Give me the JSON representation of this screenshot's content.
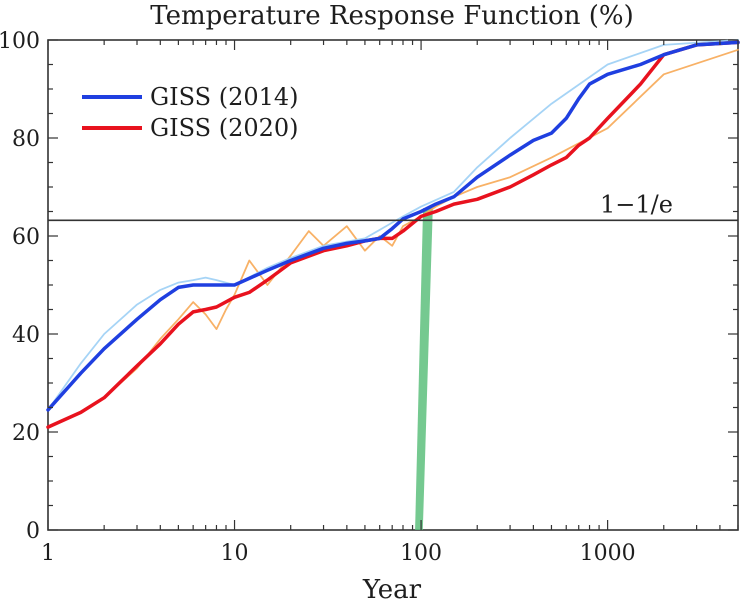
{
  "chart_data": {
    "type": "line",
    "title": "Temperature Response Function (%)",
    "xlabel": "Year",
    "ylabel": "",
    "x_scale": "log",
    "xlim": [
      1,
      5000
    ],
    "ylim": [
      0,
      100
    ],
    "x_ticks": [
      1,
      10,
      100,
      1000
    ],
    "x_tick_labels": [
      "1",
      "10",
      "100",
      "1000"
    ],
    "y_ticks": [
      0,
      20,
      40,
      60,
      80,
      100
    ],
    "y_tick_labels": [
      "0",
      "20",
      "40",
      "60",
      "80",
      "100"
    ],
    "legend_position": "top-left",
    "grid": false,
    "reference_line": {
      "y": 63.2,
      "label": "1−1/e"
    },
    "highlight_band": {
      "x": [
        100,
        110
      ],
      "color": "#5dbf7d"
    },
    "series": [
      {
        "name": "GISS (2014)",
        "color": "#1f3fe0",
        "x": [
          1,
          1.5,
          2,
          3,
          4,
          5,
          6,
          7,
          8,
          10,
          15,
          20,
          30,
          40,
          50,
          60,
          70,
          80,
          100,
          120,
          150,
          200,
          300,
          400,
          500,
          600,
          700,
          800,
          1000,
          1500,
          2000,
          3000,
          5000
        ],
        "y": [
          24.5,
          32,
          37,
          43,
          47,
          49.5,
          50,
          50,
          50,
          50,
          53,
          55,
          57.5,
          58.5,
          59,
          59.5,
          61.5,
          63.5,
          65,
          66.5,
          68,
          72,
          76.5,
          79.5,
          81,
          84,
          88,
          91,
          93,
          95,
          97,
          99,
          99.5
        ]
      },
      {
        "name": "GISS (2020)",
        "color": "#e8121e",
        "x": [
          1,
          1.5,
          2,
          3,
          4,
          5,
          6,
          7,
          8,
          10,
          12,
          15,
          20,
          30,
          40,
          50,
          60,
          70,
          80,
          100,
          120,
          150,
          200,
          300,
          400,
          500,
          600,
          700,
          800,
          1000,
          1500,
          2000,
          3000,
          5000
        ],
        "y": [
          21,
          24,
          27,
          33.5,
          38,
          42,
          44.5,
          45,
          45.5,
          47.5,
          48.5,
          51,
          54.5,
          57,
          58,
          59,
          59.5,
          59.5,
          61,
          64,
          65,
          66.5,
          67.5,
          70,
          72.5,
          74.5,
          76,
          78.5,
          80,
          84,
          91,
          97,
          99,
          99.5
        ]
      },
      {
        "name": "",
        "color": "#9ccff5",
        "x": [
          1,
          1.5,
          2,
          3,
          4,
          5,
          6,
          7,
          8,
          10,
          15,
          20,
          30,
          50,
          80,
          100,
          150,
          200,
          300,
          500,
          1000,
          2000,
          5000
        ],
        "y": [
          24.5,
          34,
          40,
          46,
          49,
          50.5,
          51,
          51.5,
          51,
          50,
          53.5,
          55.5,
          58,
          59.5,
          64,
          66,
          69,
          74,
          80,
          87,
          95,
          99,
          100
        ]
      },
      {
        "name": "",
        "color": "#f7a955",
        "x": [
          1,
          1.5,
          2,
          3,
          4,
          5,
          6,
          7,
          8,
          9,
          10,
          12,
          15,
          20,
          25,
          30,
          40,
          50,
          60,
          70,
          80,
          100,
          120,
          150,
          200,
          300,
          500,
          1000,
          2000,
          5000
        ],
        "y": [
          21,
          24,
          27,
          33,
          39,
          43,
          46.5,
          44,
          41,
          45,
          48,
          55,
          50,
          56,
          61,
          58,
          62,
          57,
          60,
          58,
          62,
          64,
          66,
          68,
          70,
          72,
          76,
          82,
          93,
          98
        ]
      }
    ]
  }
}
